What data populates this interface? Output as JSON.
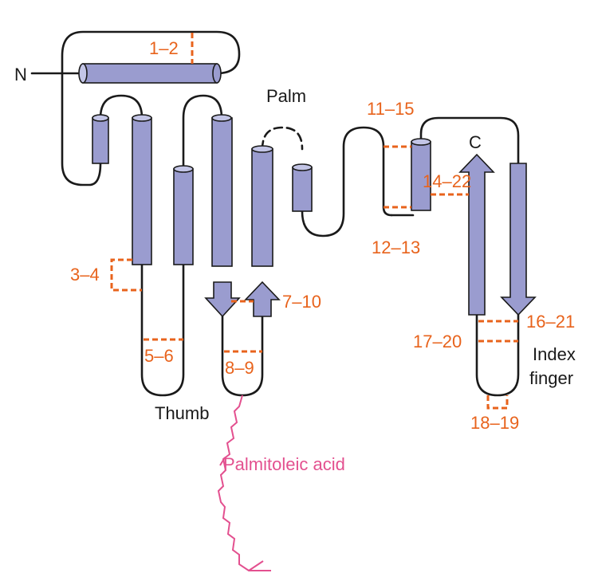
{
  "colors": {
    "helix": "#9a9ccf",
    "helix_cap": "#c3c5e6",
    "strand": "#9a9ccf",
    "loop": "#1a1a1a",
    "disulfide": "#e8631c",
    "lipid": "#e3508f"
  },
  "terminals": {
    "n_label": "N",
    "c_label": "C"
  },
  "regions": {
    "palm": "Palm",
    "thumb": "Thumb",
    "index_line1": "Index",
    "index_line2": "finger"
  },
  "lipid_label": "Palmitoleic acid",
  "disulfides": {
    "d1": "1–2",
    "d2": "3–4",
    "d3": "5–6",
    "d4": "7–10",
    "d5": "8–9",
    "d6": "11–15",
    "d7": "12–13",
    "d8": "14–22",
    "d9": "16–21",
    "d10": "17–20",
    "d11": "18–19"
  }
}
